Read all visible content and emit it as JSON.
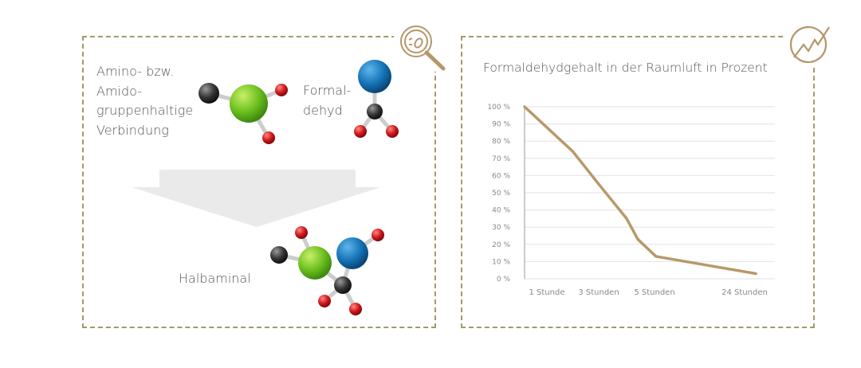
{
  "reaction": {
    "reactant1_label": "Amino- bzw. Amido- gruppenhaltige Verbindung",
    "reactant1_lines": [
      "Amino- bzw.",
      "Amido-",
      "gruppenhaltige",
      "Verbindung"
    ],
    "reactant2_lines": [
      "Formal-",
      "dehyd"
    ],
    "product_label": "Halbaminal",
    "icon": "magnifier-bacteria-icon"
  },
  "colors": {
    "accent": "#b5976a",
    "border": "#a39a6b",
    "line": "#b8996a",
    "grid": "#e2e2ea"
  },
  "chart_data": {
    "type": "line",
    "title": "Formaldehydgehalt in der Raumluft in Prozent",
    "icon": "trend-chart-icon",
    "xlabel": "",
    "ylabel": "",
    "x_tick_labels": [
      "1 Stunde",
      "3 Stunden",
      "5 Stunden",
      "24 Stunden"
    ],
    "x_tick_hours": [
      1,
      3,
      5,
      24
    ],
    "y_tick_labels": [
      "0 %",
      "10 %",
      "20 %",
      "30 %",
      "40 %",
      "50 %",
      "60 %",
      "70 %",
      "80 %",
      "90 %",
      "100 %"
    ],
    "ylim": [
      0,
      100
    ],
    "grid": true,
    "series": [
      {
        "x": [
          0,
          2,
          3,
          4,
          4.4,
          5.3,
          26
        ],
        "y": [
          100,
          74,
          55,
          35,
          23,
          13,
          3
        ]
      }
    ]
  }
}
